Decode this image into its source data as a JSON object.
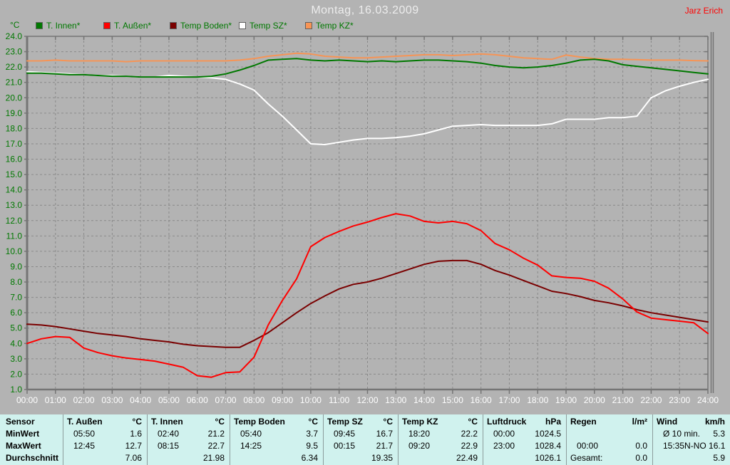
{
  "header": {
    "title": "Montag, 16.03.2009",
    "watermark": "Jarz Erich"
  },
  "chart_data": {
    "type": "line",
    "title": "Montag, 16.03.2009",
    "ylabel": "°C",
    "ylim": [
      1.0,
      24.0
    ],
    "ytick_step": 1.0,
    "grid": "dashed",
    "legend_position": "top",
    "x_ticks": [
      "00:00",
      "01:00",
      "02:00",
      "03:00",
      "04:00",
      "05:00",
      "06:00",
      "07:00",
      "08:00",
      "09:00",
      "10:00",
      "11:00",
      "12:00",
      "13:00",
      "14:00",
      "15:00",
      "16:00",
      "17:00",
      "18:00",
      "19:00",
      "20:00",
      "21:00",
      "22:00",
      "23:00",
      "24:00"
    ],
    "x_hours": [
      0,
      0.5,
      1,
      1.5,
      2,
      2.5,
      3,
      3.5,
      4,
      4.5,
      5,
      5.5,
      6,
      6.5,
      7,
      7.5,
      8,
      8.5,
      9,
      9.5,
      10,
      10.5,
      11,
      11.5,
      12,
      12.5,
      13,
      13.5,
      14,
      14.5,
      15,
      15.5,
      16,
      16.5,
      17,
      17.5,
      18,
      18.5,
      19,
      19.5,
      20,
      20.5,
      21,
      21.5,
      22,
      22.5,
      23,
      23.5,
      24
    ],
    "series": [
      {
        "name": "Temp Boden*",
        "color": "#7a0000",
        "values": [
          5.25,
          5.2,
          5.1,
          4.95,
          4.8,
          4.65,
          4.55,
          4.45,
          4.3,
          4.2,
          4.1,
          3.95,
          3.85,
          3.8,
          3.75,
          3.75,
          4.2,
          4.7,
          5.35,
          6.0,
          6.6,
          7.1,
          7.55,
          7.85,
          8.0,
          8.25,
          8.55,
          8.85,
          9.15,
          9.35,
          9.4,
          9.4,
          9.15,
          8.75,
          8.45,
          8.1,
          7.75,
          7.4,
          7.25,
          7.05,
          6.8,
          6.65,
          6.45,
          6.2,
          6.0,
          5.85,
          5.7,
          5.55,
          5.4
        ]
      },
      {
        "name": "T. Außen*",
        "color": "#ff0000",
        "values": [
          4.0,
          4.3,
          4.45,
          4.4,
          3.7,
          3.4,
          3.2,
          3.05,
          2.95,
          2.85,
          2.65,
          2.45,
          1.9,
          1.8,
          2.1,
          2.15,
          3.1,
          5.2,
          6.8,
          8.2,
          10.3,
          10.9,
          11.3,
          11.65,
          11.9,
          12.2,
          12.45,
          12.3,
          11.95,
          11.85,
          11.95,
          11.8,
          11.35,
          10.5,
          10.1,
          9.55,
          9.1,
          8.4,
          8.3,
          8.25,
          8.05,
          7.6,
          6.9,
          6.05,
          5.65,
          5.55,
          5.45,
          5.35,
          4.65
        ]
      },
      {
        "name": "Temp SZ*",
        "color": "#ffffff",
        "values": [
          21.7,
          21.65,
          21.6,
          21.55,
          21.5,
          21.45,
          21.45,
          21.4,
          21.35,
          21.35,
          21.45,
          21.4,
          21.35,
          21.3,
          21.2,
          20.9,
          20.5,
          19.6,
          18.8,
          17.9,
          17.0,
          16.95,
          17.1,
          17.25,
          17.35,
          17.35,
          17.4,
          17.5,
          17.65,
          17.9,
          18.15,
          18.2,
          18.25,
          18.2,
          18.2,
          18.2,
          18.2,
          18.3,
          18.6,
          18.6,
          18.6,
          18.7,
          18.7,
          18.8,
          20.0,
          20.45,
          20.75,
          21.0,
          21.2
        ]
      },
      {
        "name": "Temp KZ*",
        "color": "#f79455",
        "values": [
          22.4,
          22.4,
          22.45,
          22.4,
          22.4,
          22.4,
          22.4,
          22.35,
          22.4,
          22.4,
          22.4,
          22.4,
          22.4,
          22.4,
          22.4,
          22.45,
          22.55,
          22.7,
          22.8,
          22.9,
          22.85,
          22.7,
          22.65,
          22.6,
          22.6,
          22.65,
          22.7,
          22.75,
          22.8,
          22.8,
          22.75,
          22.8,
          22.85,
          22.8,
          22.7,
          22.6,
          22.55,
          22.5,
          22.78,
          22.65,
          22.55,
          22.5,
          22.5,
          22.48,
          22.45,
          22.45,
          22.45,
          22.42,
          22.4
        ]
      },
      {
        "name": "T. Innen*",
        "color": "#007800",
        "values": [
          21.6,
          21.6,
          21.55,
          21.5,
          21.5,
          21.45,
          21.4,
          21.4,
          21.35,
          21.35,
          21.35,
          21.35,
          21.35,
          21.4,
          21.55,
          21.8,
          22.1,
          22.45,
          22.5,
          22.55,
          22.45,
          22.4,
          22.45,
          22.4,
          22.35,
          22.4,
          22.35,
          22.4,
          22.45,
          22.45,
          22.4,
          22.35,
          22.25,
          22.1,
          22.0,
          21.95,
          22.0,
          22.1,
          22.25,
          22.45,
          22.5,
          22.4,
          22.15,
          22.05,
          21.95,
          21.85,
          21.75,
          21.65,
          21.55
        ]
      }
    ],
    "legend_order": [
      "T. Innen*",
      "T. Außen*",
      "Temp Boden*",
      "Temp SZ*",
      "Temp KZ*"
    ]
  },
  "table": {
    "row_labels": [
      "Sensor",
      "MinWert",
      "MaxWert",
      "Durchschnitt"
    ],
    "columns": [
      {
        "name": "T. Außen",
        "unit": "°C",
        "min_time": "05:50",
        "min_value": "1.6",
        "max_time": "12:45",
        "max_value": "12.7",
        "avg_label": "",
        "avg": "7.06"
      },
      {
        "name": "T. Innen",
        "unit": "°C",
        "min_time": "02:40",
        "min_value": "21.2",
        "max_time": "08:15",
        "max_value": "22.7",
        "avg_label": "",
        "avg": "21.98"
      },
      {
        "name": "Temp Boden",
        "unit": "°C",
        "min_time": "05:40",
        "min_value": "3.7",
        "max_time": "14:25",
        "max_value": "9.5",
        "avg_label": "",
        "avg": "6.34"
      },
      {
        "name": "Temp SZ",
        "unit": "°C",
        "min_time": "09:45",
        "min_value": "16.7",
        "max_time": "00:15",
        "max_value": "21.7",
        "avg_label": "",
        "avg": "19.35"
      },
      {
        "name": "Temp KZ",
        "unit": "°C",
        "min_time": "18:20",
        "min_value": "22.2",
        "max_time": "09:20",
        "max_value": "22.9",
        "avg_label": "",
        "avg": "22.49"
      },
      {
        "name": "Luftdruck",
        "unit": "hPa",
        "min_time": "00:00",
        "min_value": "1024.5",
        "max_time": "23:00",
        "max_value": "1028.4",
        "avg_label": "",
        "avg": "1026.1"
      },
      {
        "name": "Regen",
        "unit": "l/m²",
        "min_time": "",
        "min_value": "",
        "max_time": "00:00",
        "max_value": "0.0",
        "avg_label": "Gesamt:",
        "avg": "0.0"
      },
      {
        "name": "Wind",
        "unit": "km/h",
        "min_time": "Ø 10 min.",
        "min_value": "5.3",
        "max_time": "15:35",
        "max_value": "N-NO 16.1",
        "avg_label": "",
        "avg": "5.9"
      }
    ]
  },
  "colors": {
    "background": "#b3b3b3",
    "grid": "#8a8a8a",
    "frame": "#757575",
    "y_labels": "#007800",
    "x_labels": "#ffffff",
    "title": "#ededed",
    "watermark": "#ff0000",
    "table_background": "#d0f2ee",
    "table_separator": "#8c9c9c"
  }
}
